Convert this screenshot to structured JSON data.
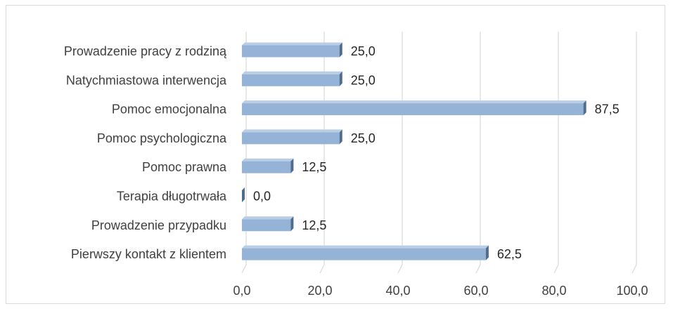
{
  "chart_data": {
    "type": "bar",
    "orientation": "horizontal",
    "categories": [
      "Prowadzenie pracy z rodziną",
      "Natychmiastowa interwencja",
      "Pomoc emocjonalna",
      "Pomoc psychologiczna",
      "Pomoc prawna",
      "Terapia długotrwała",
      "Prowadzenie przypadku",
      "Pierwszy kontakt z klientem"
    ],
    "values": [
      25.0,
      25.0,
      87.5,
      25.0,
      12.5,
      0.0,
      12.5,
      62.5
    ],
    "value_labels": [
      "25,0",
      "25,0",
      "87,5",
      "25,0",
      "12,5",
      "0,0",
      "12,5",
      "62,5"
    ],
    "xlim": [
      0,
      100
    ],
    "x_ticks": [
      0,
      20,
      40,
      60,
      80,
      100
    ],
    "x_tick_labels": [
      "0,0",
      "20,0",
      "40,0",
      "60,0",
      "80,0",
      "100,0"
    ],
    "grid": true,
    "style": "3d",
    "colors": {
      "bar_front": "#95b3d7",
      "bar_top": "#b9cde5",
      "bar_side": "#4f6c8f",
      "grid": "#d9d9d9"
    }
  }
}
